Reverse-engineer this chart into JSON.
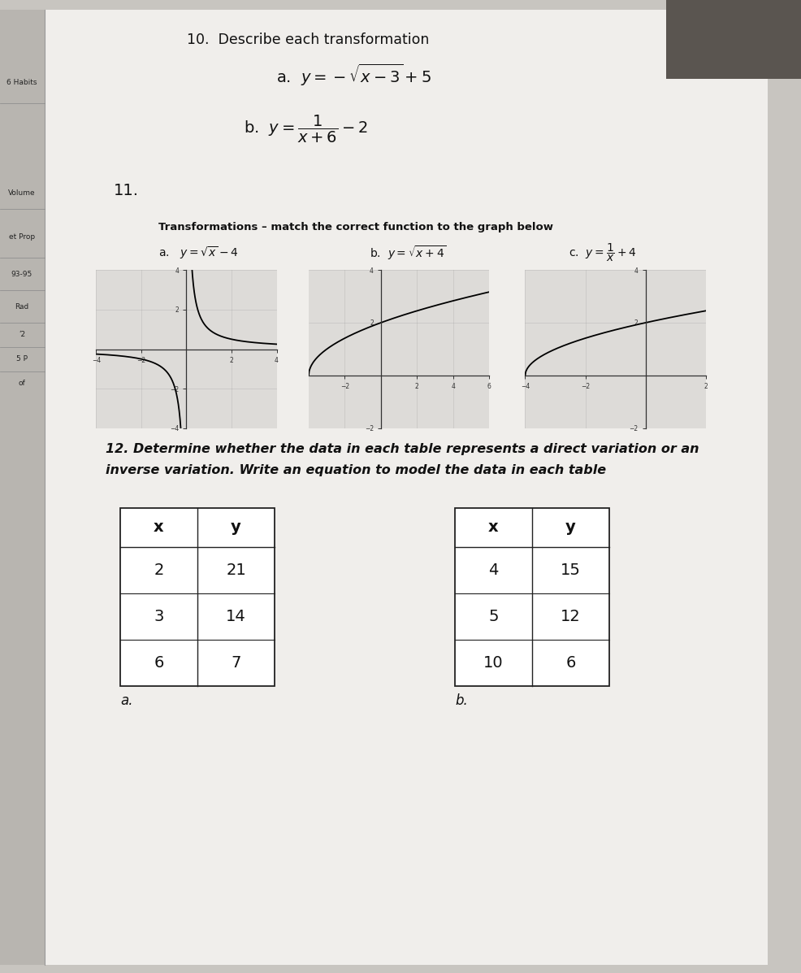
{
  "bg_color": "#c8c5c0",
  "paper_color": "#f0eeeb",
  "sidebar_color": "#b8b5b0",
  "title10": "10.  Describe each transformation",
  "label11": "11.",
  "label12_line1": "12. Determine whether the data in each table represents a direct variation or an",
  "label12_line2": "inverse variation. Write an equation to model the data in each table",
  "transform_label": "Transformations – match the correct function to the graph below",
  "left_sidebar": [
    "6 Habits",
    "Volume",
    "et Prop",
    "93-95",
    "Rad",
    "ʹ2",
    "5 P",
    "of"
  ],
  "sidebar_y": [
    1095,
    960,
    905,
    860,
    820,
    785,
    755,
    725
  ],
  "table_a_headers": [
    "x",
    "y"
  ],
  "table_a_data": [
    [
      2,
      21
    ],
    [
      3,
      14
    ],
    [
      6,
      7
    ]
  ],
  "table_b_headers": [
    "x",
    "y"
  ],
  "table_b_data": [
    [
      4,
      15
    ],
    [
      5,
      12
    ],
    [
      10,
      6
    ]
  ],
  "label_a": "a.",
  "label_b": "b.",
  "graph1_xlim": [
    -4,
    4
  ],
  "graph1_ylim": [
    -4,
    4
  ],
  "graph1_xticks": [
    -4,
    -2,
    2,
    4
  ],
  "graph1_yticks": [
    -4,
    -2,
    2,
    4
  ],
  "graph2_xlim": [
    -4,
    6
  ],
  "graph2_ylim": [
    -2,
    4
  ],
  "graph2_xticks": [
    -2,
    2,
    4,
    6
  ],
  "graph2_yticks": [
    -2,
    2,
    4
  ],
  "graph3_xlim": [
    -4,
    2
  ],
  "graph3_ylim": [
    -2,
    4
  ],
  "graph3_xticks": [
    -4,
    -2,
    2
  ],
  "graph3_yticks": [
    -2,
    2,
    4
  ]
}
